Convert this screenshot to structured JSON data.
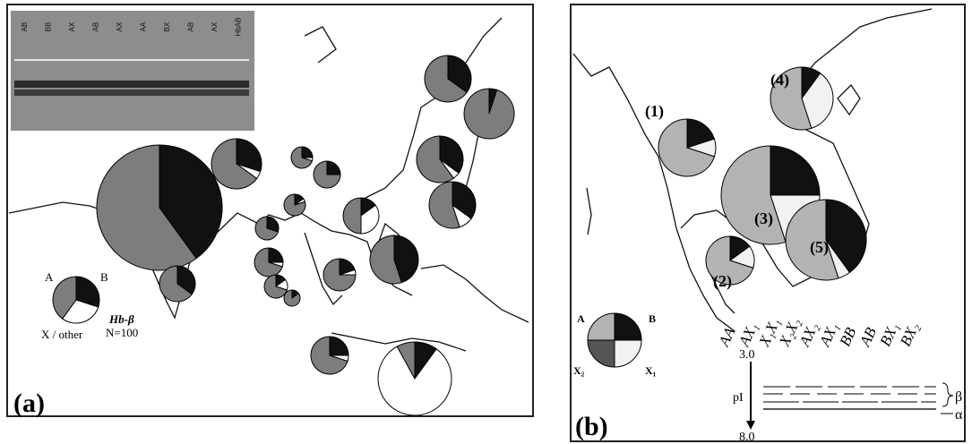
{
  "panel_a": {
    "label": "(a)",
    "gel_lanes": [
      "AB",
      "BB",
      "AX",
      "AB",
      "AX",
      "AA",
      "BX",
      "AB",
      "AX",
      "HbAB"
    ],
    "legend_labels": [
      "A",
      "B",
      "X / other"
    ],
    "legend_title": "Hb-β",
    "legend_n": "N=100",
    "colors": [
      "#7d7d7d",
      "#111111",
      "#ffffff"
    ],
    "legend_pie": [
      40,
      30,
      30
    ],
    "pies": [
      [
        60,
        40,
        0
      ],
      [
        65,
        30,
        5
      ],
      [
        70,
        25,
        5
      ],
      [
        75,
        25,
        0
      ],
      [
        80,
        15,
        5
      ],
      [
        70,
        30,
        0
      ],
      [
        70,
        25,
        5
      ],
      [
        50,
        15,
        35
      ],
      [
        60,
        35,
        5
      ],
      [
        55,
        35,
        10
      ],
      [
        55,
        45,
        0
      ],
      [
        75,
        20,
        5
      ],
      [
        70,
        15,
        15
      ],
      [
        65,
        35,
        0
      ],
      [
        85,
        15,
        0
      ],
      [
        70,
        25,
        5
      ],
      [
        8,
        10,
        82
      ],
      [
        65,
        35,
        0
      ],
      [
        95,
        5,
        0
      ]
    ]
  },
  "panel_b": {
    "label": "(b)",
    "region_labels": [
      "(1)",
      "(2)",
      "(3)",
      "(4)",
      "(5)"
    ],
    "legend_labels": [
      "A",
      "B",
      "X₁",
      "X₂"
    ],
    "colors": [
      "#b3b3b3",
      "#111111",
      "#f2f2f2",
      "#555555"
    ],
    "legend_pie": [
      25,
      25,
      25,
      25
    ],
    "pies": [
      [
        70,
        20,
        10,
        0
      ],
      [
        70,
        15,
        15,
        0
      ],
      [
        55,
        25,
        20,
        0
      ],
      [
        55,
        10,
        35,
        0
      ],
      [
        55,
        40,
        5,
        0
      ]
    ],
    "genotypes": [
      "AA",
      "AX₁",
      "X₁X₁",
      "X₂X₂",
      "AX₂",
      "AX₁",
      "BB",
      "AB",
      "BX₁",
      "BX₂"
    ],
    "pi_label": "pI",
    "pi_top": "3.0",
    "pi_bottom": "8.0",
    "band_labels": [
      "β",
      "α"
    ]
  }
}
